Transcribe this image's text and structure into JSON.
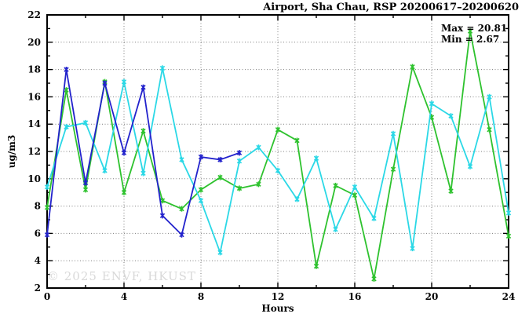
{
  "title": "Airport, Sha Chau, RSP 20200617–20200620",
  "legend": {
    "max_label": "Max = 20.81",
    "min_label": "Min =  2.67"
  },
  "watermark": "© 2025 ENVF, HKUST",
  "chart_data": {
    "type": "line",
    "title": "Airport, Sha Chau, RSP 20200617–20200620",
    "xlabel": "Hours",
    "ylabel": "ug/m3",
    "xlim": [
      0,
      24
    ],
    "ylim": [
      2,
      22
    ],
    "x_ticks": [
      0,
      4,
      8,
      12,
      16,
      20,
      24
    ],
    "x_minor_ticks": [
      2,
      6,
      10,
      14,
      18,
      22
    ],
    "y_ticks": [
      2,
      4,
      6,
      8,
      10,
      12,
      14,
      16,
      18,
      20,
      22
    ],
    "y_minor_ticks": [
      3,
      5,
      7,
      9,
      11,
      13,
      15,
      17,
      19,
      21
    ],
    "grid": true,
    "legend_position": "top-right",
    "stats": {
      "max": 20.81,
      "min": 2.67
    },
    "marker": "star",
    "series": [
      {
        "name": "green",
        "color": "#2ec22e",
        "x": [
          0,
          1,
          2,
          3,
          4,
          5,
          6,
          7,
          8,
          9,
          10,
          11,
          12,
          13,
          14,
          15,
          16,
          17,
          18,
          19,
          20,
          21,
          22,
          23,
          24
        ],
        "values": [
          7.9,
          16.5,
          9.2,
          17.1,
          9.0,
          13.5,
          8.4,
          7.8,
          9.2,
          10.1,
          9.3,
          9.6,
          13.6,
          12.8,
          3.6,
          9.5,
          8.8,
          2.67,
          10.7,
          18.2,
          14.5,
          9.1,
          20.81,
          13.6,
          5.8
        ]
      },
      {
        "name": "cyan",
        "color": "#2bd8e6",
        "x": [
          0,
          1,
          2,
          3,
          4,
          5,
          6,
          7,
          8,
          9,
          10,
          11,
          12,
          13,
          14,
          15,
          16,
          17,
          18,
          19,
          20,
          21,
          22,
          23,
          24
        ],
        "values": [
          9.4,
          13.8,
          14.1,
          10.6,
          17.1,
          10.4,
          18.1,
          11.4,
          8.4,
          4.6,
          11.3,
          12.3,
          10.6,
          8.5,
          11.5,
          6.3,
          9.4,
          7.1,
          13.3,
          4.9,
          15.5,
          14.6,
          10.9,
          16.0,
          7.5
        ]
      },
      {
        "name": "blue",
        "color": "#2222cc",
        "x": [
          0,
          1,
          2,
          3,
          4,
          5,
          6,
          7,
          8,
          9,
          10
        ],
        "values": [
          5.9,
          18.0,
          9.7,
          17.0,
          11.9,
          16.7,
          7.3,
          5.9,
          11.6,
          11.4,
          11.9
        ]
      }
    ]
  }
}
